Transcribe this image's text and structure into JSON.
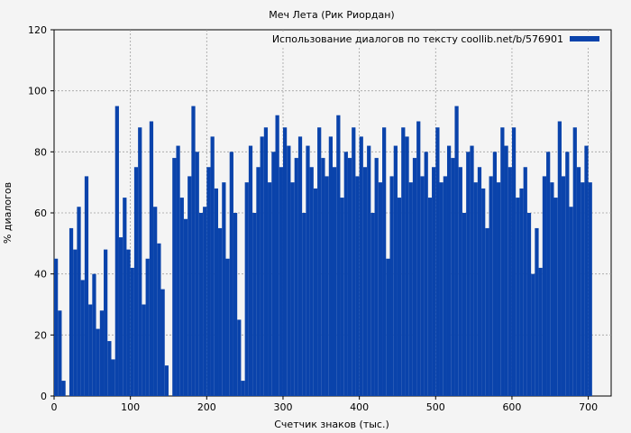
{
  "chart_data": {
    "type": "bar",
    "title": "Меч Лета (Рик Риордан)",
    "xlabel": "Счетчик знаков (тыс.)",
    "ylabel": "% диалогов",
    "xlim": [
      0,
      730
    ],
    "ylim": [
      0,
      120
    ],
    "xticks": [
      0,
      100,
      200,
      300,
      400,
      500,
      600,
      700
    ],
    "yticks": [
      0,
      20,
      40,
      60,
      80,
      100,
      120
    ],
    "grid": true,
    "legend_position": "top-right",
    "colors": {
      "series": "#0a43ab",
      "background": "#f4f4f4",
      "grid": "#a0a0a0"
    },
    "series": [
      {
        "name": "Использование диалогов по тексту coollib.net/b/576901",
        "x_step": 5,
        "x": [
          0,
          5,
          10,
          15,
          20,
          25,
          30,
          35,
          40,
          45,
          50,
          55,
          60,
          65,
          70,
          75,
          80,
          85,
          90,
          95,
          100,
          105,
          110,
          115,
          120,
          125,
          130,
          135,
          140,
          145,
          150,
          155,
          160,
          165,
          170,
          175,
          180,
          185,
          190,
          195,
          200,
          205,
          210,
          215,
          220,
          225,
          230,
          235,
          240,
          245,
          250,
          255,
          260,
          265,
          270,
          275,
          280,
          285,
          290,
          295,
          300,
          305,
          310,
          315,
          320,
          325,
          330,
          335,
          340,
          345,
          350,
          355,
          360,
          365,
          370,
          375,
          380,
          385,
          390,
          395,
          400,
          405,
          410,
          415,
          420,
          425,
          430,
          435,
          440,
          445,
          450,
          455,
          460,
          465,
          470,
          475,
          480,
          485,
          490,
          495,
          500,
          505,
          510,
          515,
          520,
          525,
          530,
          535,
          540,
          545,
          550,
          555,
          560,
          565,
          570,
          575,
          580,
          585,
          590,
          595,
          600,
          605,
          610,
          615,
          620,
          625,
          630,
          635,
          640,
          645,
          650,
          655,
          660,
          665,
          670,
          675,
          680,
          685,
          690,
          695,
          700
        ],
        "values": [
          45,
          28,
          5,
          0,
          55,
          48,
          62,
          38,
          72,
          30,
          40,
          22,
          28,
          48,
          18,
          12,
          95,
          52,
          65,
          48,
          42,
          75,
          88,
          30,
          45,
          90,
          62,
          50,
          35,
          10,
          0,
          78,
          82,
          65,
          58,
          72,
          95,
          80,
          60,
          62,
          75,
          85,
          68,
          55,
          70,
          45,
          80,
          60,
          25,
          5,
          70,
          82,
          60,
          75,
          85,
          88,
          70,
          80,
          92,
          75,
          88,
          82,
          70,
          78,
          85,
          60,
          82,
          75,
          68,
          88,
          78,
          72,
          85,
          75,
          92,
          65,
          80,
          78,
          88,
          72,
          85,
          75,
          82,
          60,
          78,
          70,
          88,
          45,
          72,
          82,
          65,
          88,
          85,
          70,
          78,
          90,
          72,
          80,
          65,
          75,
          88,
          70,
          72,
          82,
          78,
          95,
          75,
          60,
          80,
          82,
          70,
          75,
          68,
          55,
          72,
          80,
          70,
          88,
          82,
          75,
          88,
          65,
          68,
          75,
          60,
          40,
          55,
          42,
          72,
          80,
          70,
          65,
          90,
          72,
          80,
          62,
          88,
          75,
          70,
          82,
          70
        ]
      }
    ]
  }
}
